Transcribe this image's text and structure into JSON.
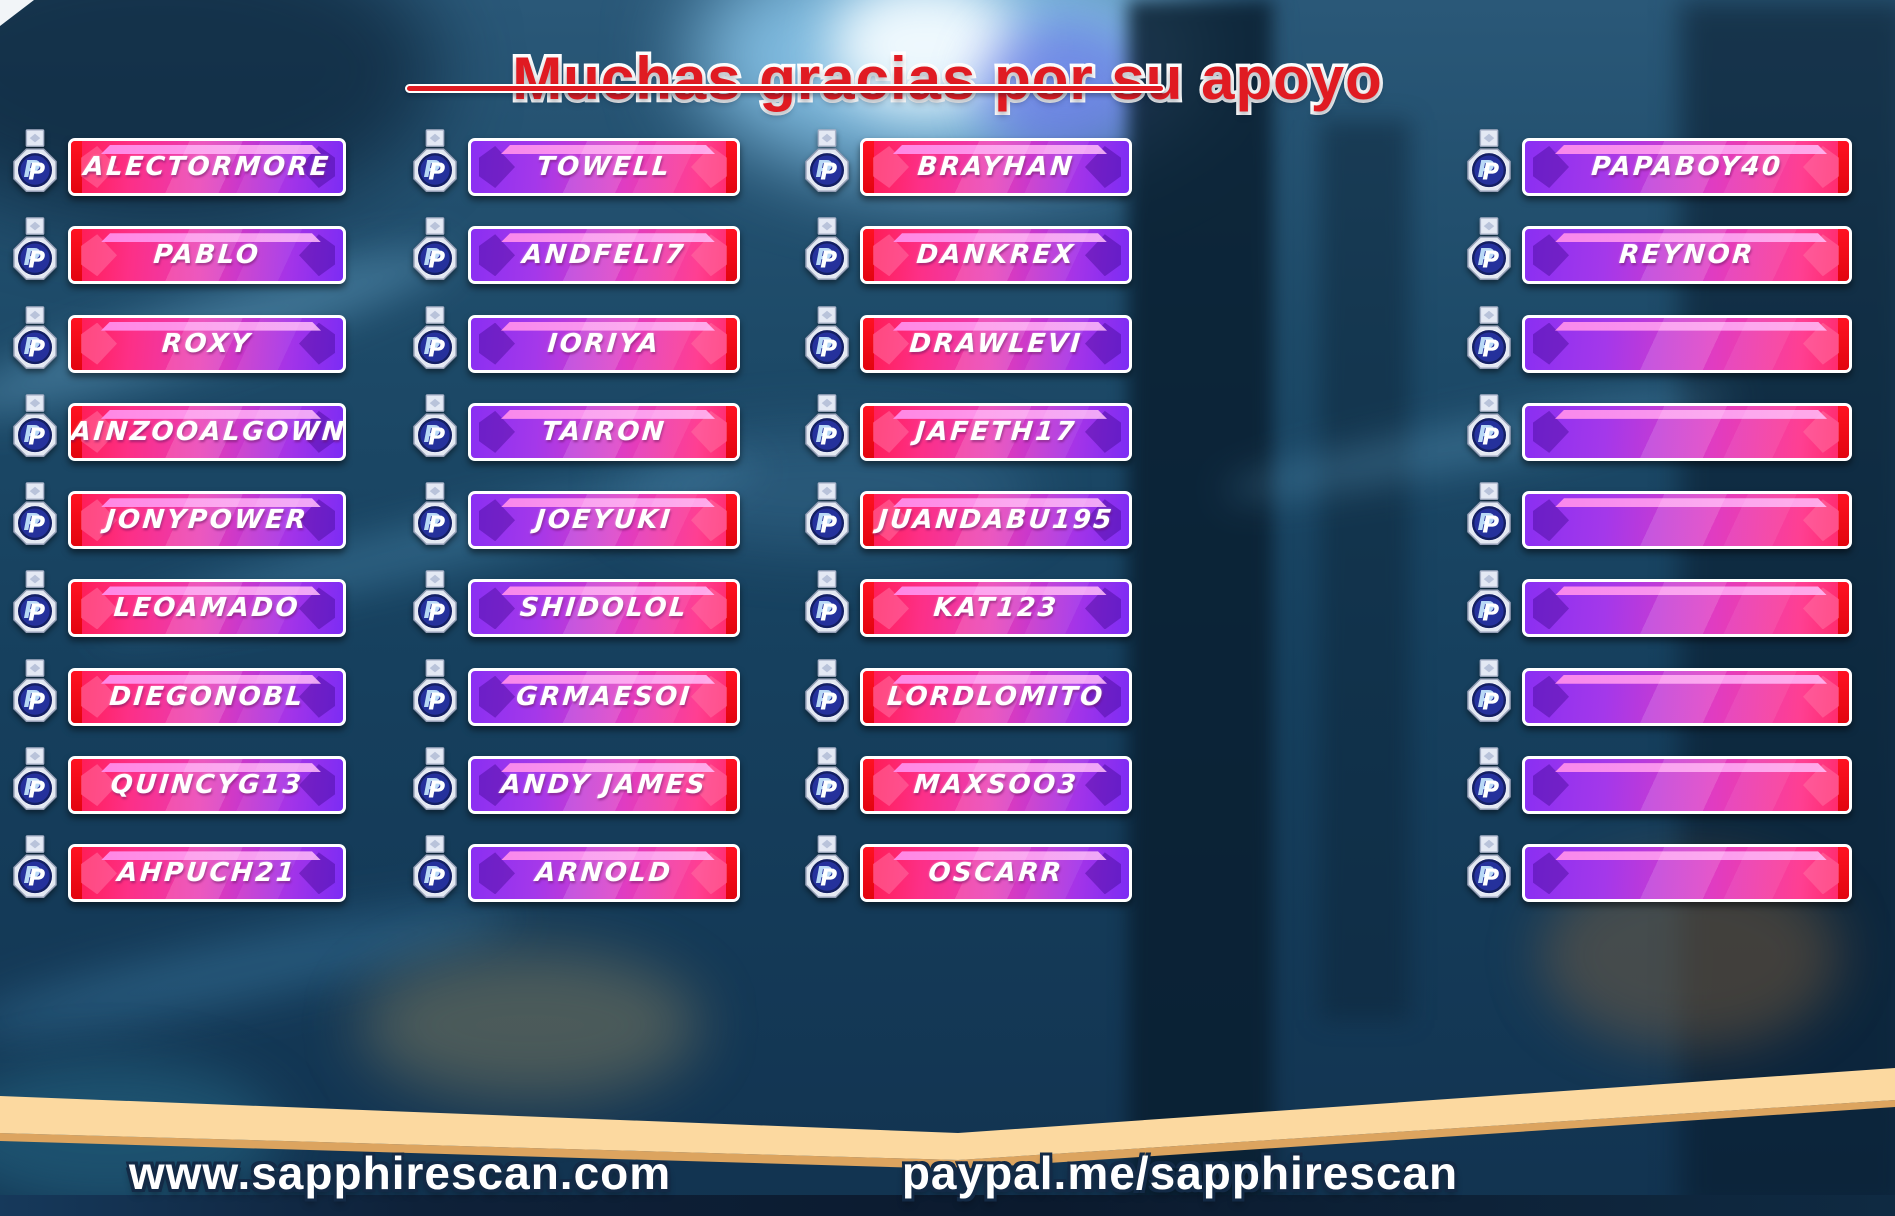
{
  "title": {
    "text": "Muchas gracias por su apoyo"
  },
  "footer": {
    "website": "www.sapphirescan.com",
    "paypal_link": "paypal.me/sapphirescan"
  },
  "badge": {
    "icon": "paypal-badge-icon",
    "brand_letter": "P"
  },
  "colors": {
    "title_red": "#e01b22",
    "plate_pink": "#ff2f86",
    "plate_purple": "#7c2cf4",
    "plate_red_edge": "#f2050f",
    "plate_highlight": "#ff9ee8",
    "ribbon_cream": "#fcd9a0",
    "ribbon_shadow": "#dca45f",
    "background_blue": "#1d4a68",
    "badge_navy": "#25319c",
    "text_white": "#ffffff"
  },
  "supporters": {
    "columns": [
      {
        "variant": "pink-to-purple",
        "names": [
          "ALECTORMORE",
          "PABLO",
          "ROXY",
          "AINZOOALGOWN",
          "JONYPOWER",
          "LEOAMADO",
          "DIEGONOBL",
          "QUINCYG13",
          "AHPUCH21"
        ]
      },
      {
        "variant": "purple-to-pink",
        "names": [
          "TOWELL",
          "ANDFELI7",
          "IORIYA",
          "TAIRON",
          "JOEYUKI",
          "SHIDOLOL",
          "GRMAESOI",
          "ANDY JAMES",
          "ARNOLD"
        ]
      },
      {
        "variant": "pink-to-purple",
        "names": [
          "BRAYHAN",
          "DANKREX",
          "DRAWLEVI",
          "JAFETH17",
          "JUANDABU195",
          "KAT123",
          "LORDLOMITO",
          "MAXSOO3",
          "OSCARR"
        ]
      },
      {
        "variant": "purple-to-pink",
        "names": [
          "PAPABOY40",
          "REYNOR",
          "",
          "",
          "",
          "",
          "",
          "",
          ""
        ]
      }
    ]
  }
}
